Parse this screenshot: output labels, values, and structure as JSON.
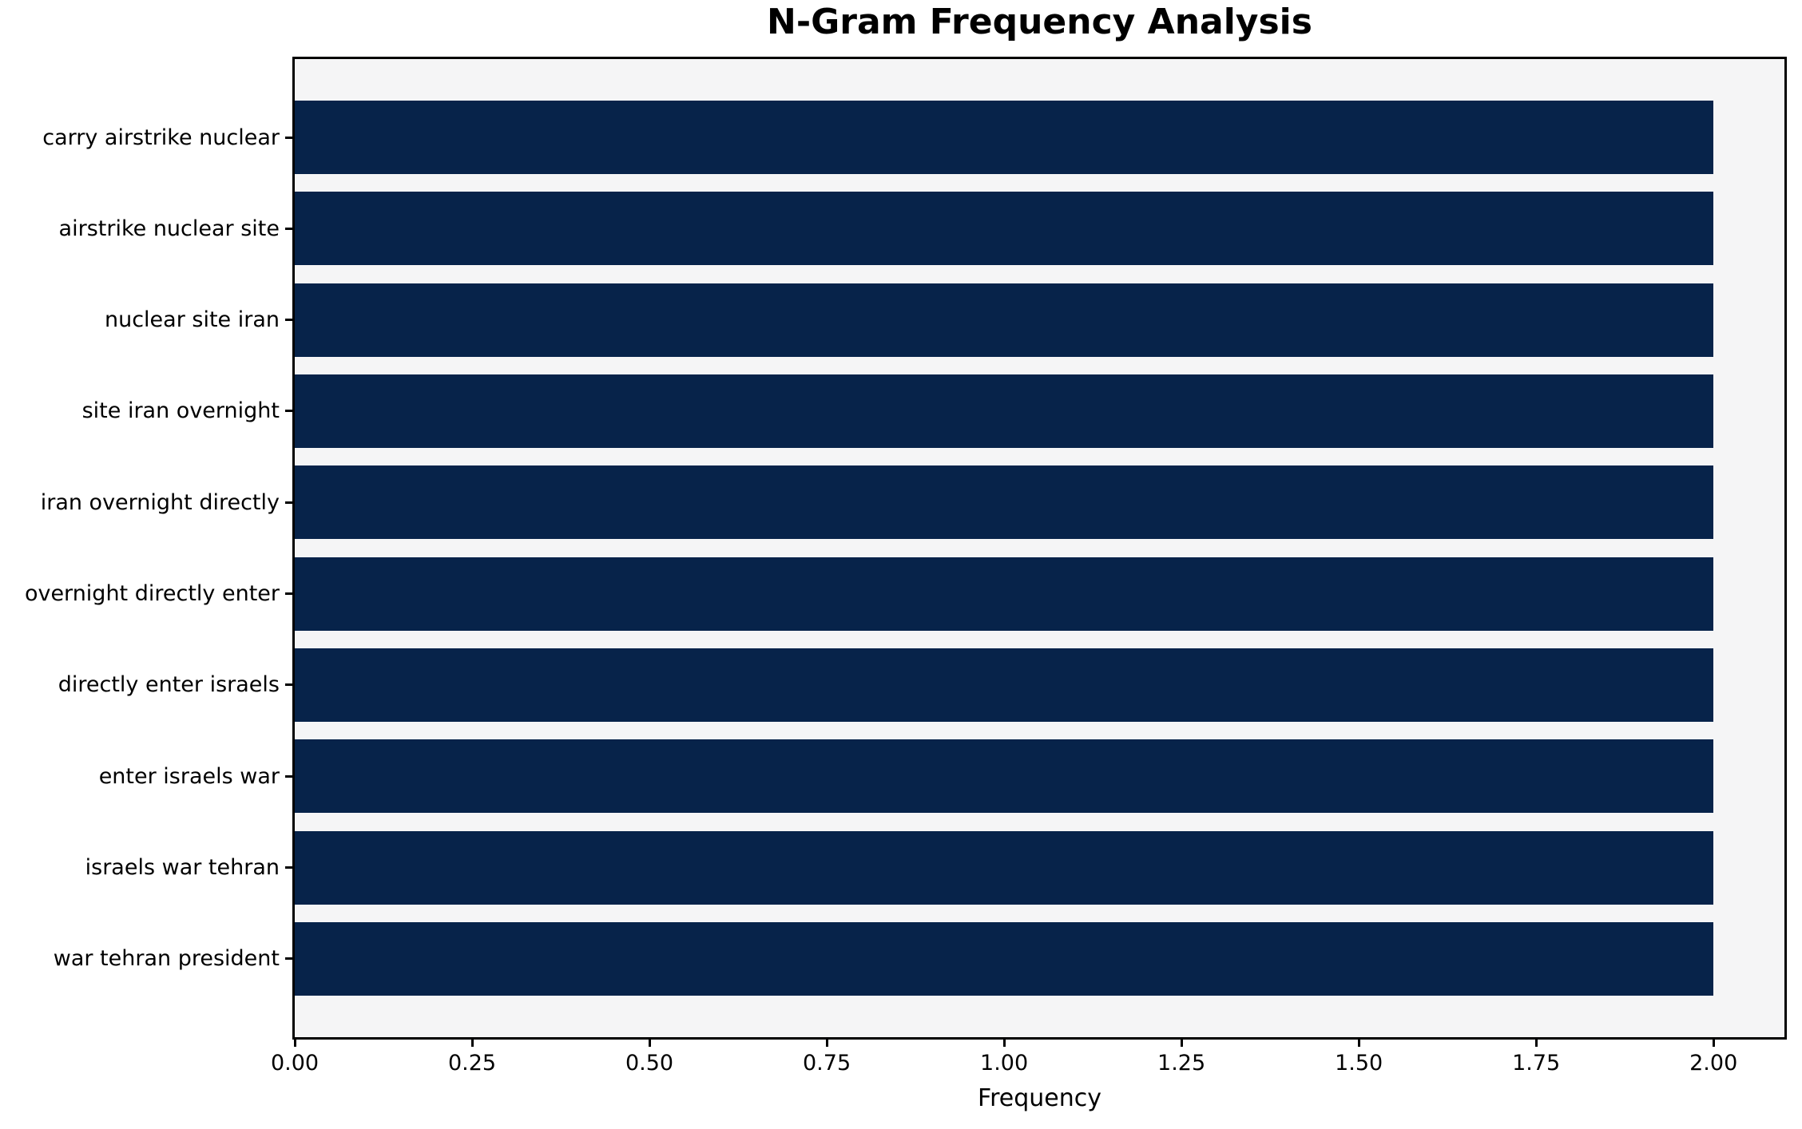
{
  "chart_data": {
    "type": "bar",
    "orientation": "horizontal",
    "title": "N-Gram Frequency Analysis",
    "xlabel": "Frequency",
    "ylabel": "",
    "categories": [
      "carry airstrike nuclear",
      "airstrike nuclear site",
      "nuclear site iran",
      "site iran overnight",
      "iran overnight directly",
      "overnight directly enter",
      "directly enter israels",
      "enter israels war",
      "israels war tehran",
      "war tehran president"
    ],
    "values": [
      2,
      2,
      2,
      2,
      2,
      2,
      2,
      2,
      2,
      2
    ],
    "xlim": [
      0,
      2.1
    ],
    "xticks": [
      0.0,
      0.25,
      0.5,
      0.75,
      1.0,
      1.25,
      1.5,
      1.75,
      2.0
    ],
    "xtick_labels": [
      "0.00",
      "0.25",
      "0.50",
      "0.75",
      "1.00",
      "1.25",
      "1.50",
      "1.75",
      "2.00"
    ],
    "grid": false,
    "legend": null,
    "bar_color": "#07234a",
    "plot_background": "#f5f5f6",
    "figure_background": "#ffffff",
    "frame_color": "#000000"
  }
}
